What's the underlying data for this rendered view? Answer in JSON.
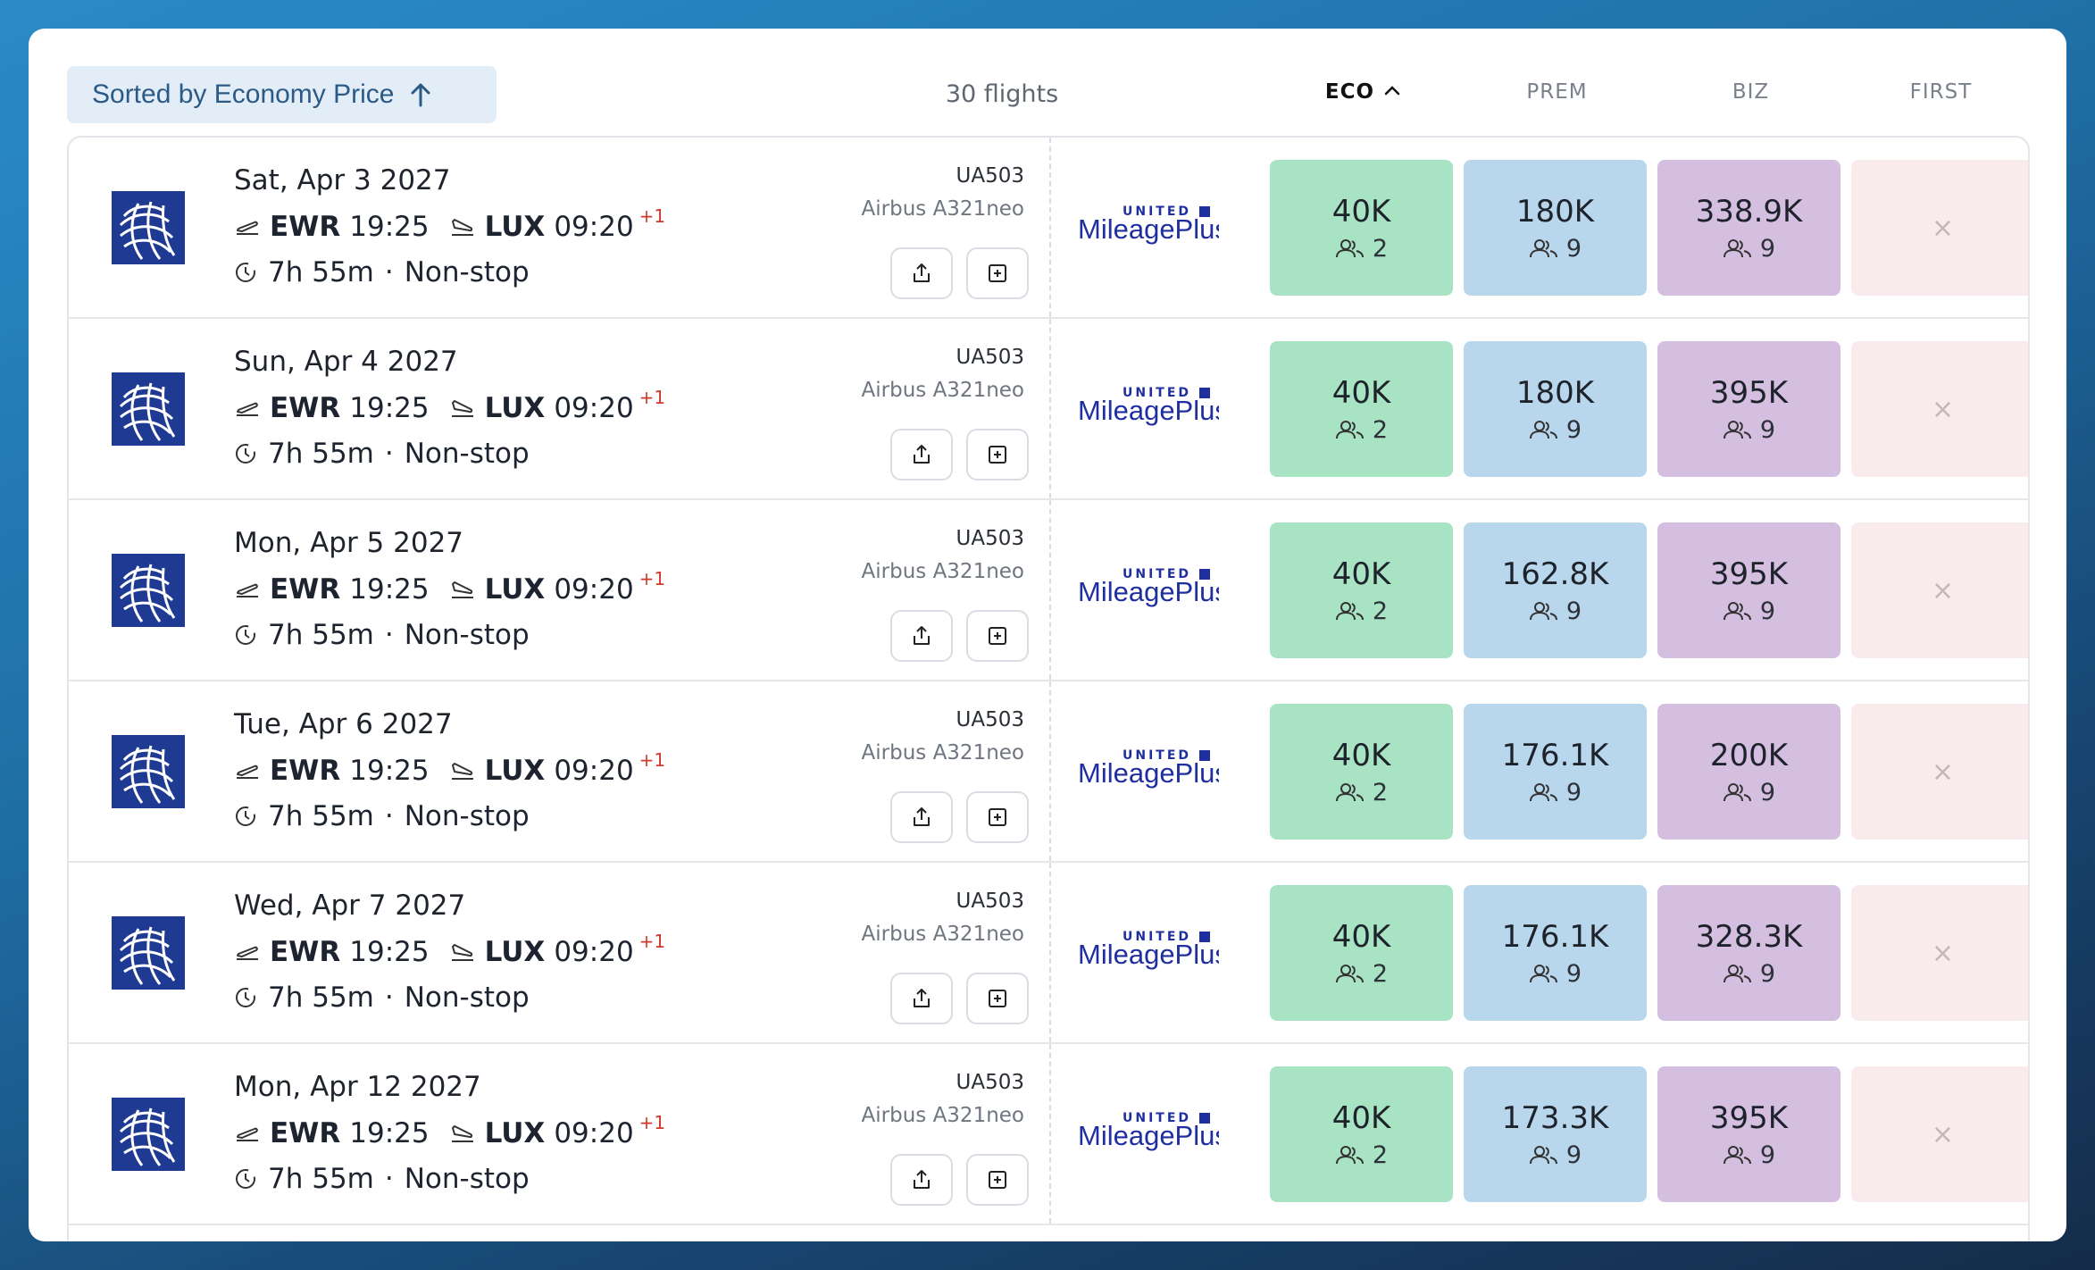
{
  "header": {
    "sort_label": "Sorted by Economy Price",
    "flight_count": "30 flights",
    "columns": {
      "eco": "ECO",
      "prem": "PREM",
      "biz": "BIZ",
      "first": "FIRST"
    }
  },
  "colors": {
    "eco": "#a8e3c3",
    "prem": "#b9d7ec",
    "biz": "#d5bfe1",
    "first": "#f9ebeb",
    "united_blue": "#1f3a93"
  },
  "icons": [
    "arrow-up-icon",
    "chevron-up-icon",
    "united-globe-icon",
    "departure-icon",
    "arrival-icon",
    "clock-icon",
    "share-icon",
    "add-icon",
    "mileageplus-logo",
    "passengers-icon",
    "close-icon"
  ],
  "program": {
    "top": "UNITED",
    "bottom": "MileagePlus"
  },
  "rows": [
    {
      "date": "Sat, Apr 3 2027",
      "dep_code": "EWR",
      "dep_time": "19:25",
      "arr_code": "LUX",
      "arr_time": "09:20",
      "day_offset": "+1",
      "duration": "7h 55m",
      "stops": "Non-stop",
      "flight_no": "UA503",
      "aircraft": "Airbus A321neo",
      "eco": "40K",
      "eco_seats": "2",
      "prem": "180K",
      "prem_seats": "9",
      "biz": "338.9K",
      "biz_seats": "9",
      "first": "×"
    },
    {
      "date": "Sun, Apr 4 2027",
      "dep_code": "EWR",
      "dep_time": "19:25",
      "arr_code": "LUX",
      "arr_time": "09:20",
      "day_offset": "+1",
      "duration": "7h 55m",
      "stops": "Non-stop",
      "flight_no": "UA503",
      "aircraft": "Airbus A321neo",
      "eco": "40K",
      "eco_seats": "2",
      "prem": "180K",
      "prem_seats": "9",
      "biz": "395K",
      "biz_seats": "9",
      "first": "×"
    },
    {
      "date": "Mon, Apr 5 2027",
      "dep_code": "EWR",
      "dep_time": "19:25",
      "arr_code": "LUX",
      "arr_time": "09:20",
      "day_offset": "+1",
      "duration": "7h 55m",
      "stops": "Non-stop",
      "flight_no": "UA503",
      "aircraft": "Airbus A321neo",
      "eco": "40K",
      "eco_seats": "2",
      "prem": "162.8K",
      "prem_seats": "9",
      "biz": "395K",
      "biz_seats": "9",
      "first": "×"
    },
    {
      "date": "Tue, Apr 6 2027",
      "dep_code": "EWR",
      "dep_time": "19:25",
      "arr_code": "LUX",
      "arr_time": "09:20",
      "day_offset": "+1",
      "duration": "7h 55m",
      "stops": "Non-stop",
      "flight_no": "UA503",
      "aircraft": "Airbus A321neo",
      "eco": "40K",
      "eco_seats": "2",
      "prem": "176.1K",
      "prem_seats": "9",
      "biz": "200K",
      "biz_seats": "9",
      "first": "×"
    },
    {
      "date": "Wed, Apr 7 2027",
      "dep_code": "EWR",
      "dep_time": "19:25",
      "arr_code": "LUX",
      "arr_time": "09:20",
      "day_offset": "+1",
      "duration": "7h 55m",
      "stops": "Non-stop",
      "flight_no": "UA503",
      "aircraft": "Airbus A321neo",
      "eco": "40K",
      "eco_seats": "2",
      "prem": "176.1K",
      "prem_seats": "9",
      "biz": "328.3K",
      "biz_seats": "9",
      "first": "×"
    },
    {
      "date": "Mon, Apr 12 2027",
      "dep_code": "EWR",
      "dep_time": "19:25",
      "arr_code": "LUX",
      "arr_time": "09:20",
      "day_offset": "+1",
      "duration": "7h 55m",
      "stops": "Non-stop",
      "flight_no": "UA503",
      "aircraft": "Airbus A321neo",
      "eco": "40K",
      "eco_seats": "2",
      "prem": "173.3K",
      "prem_seats": "9",
      "biz": "395K",
      "biz_seats": "9",
      "first": "×"
    }
  ]
}
